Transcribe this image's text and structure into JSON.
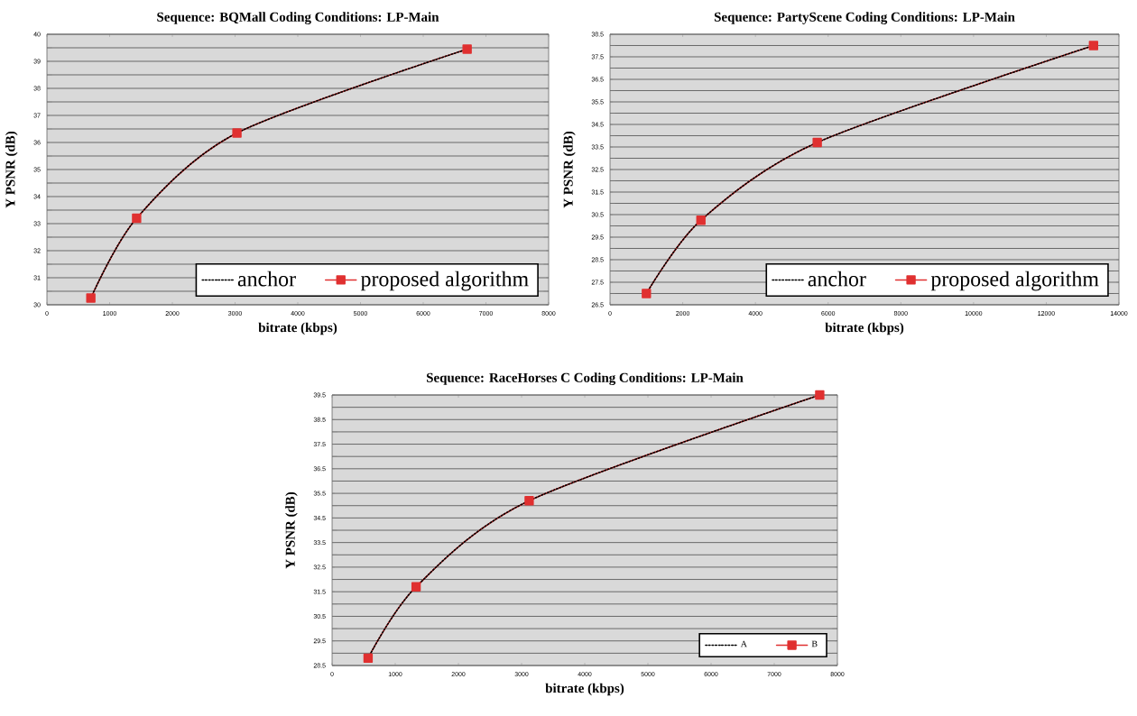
{
  "chart_data": [
    {
      "type": "line",
      "title": "Sequence:  BQMall      Coding  Conditions:  LP-Main",
      "xlabel": "bitrate  (kbps)",
      "ylabel": "Y  PSNR  (dB)",
      "x": [
        700,
        1430,
        3030,
        6700
      ],
      "series": [
        {
          "name": "anchor",
          "color": "#000000",
          "values": [
            30.25,
            33.2,
            36.35,
            39.45
          ],
          "line_style": "dotted",
          "marker": "none"
        },
        {
          "name": "proposed algorithm",
          "color": "#e03030",
          "values": [
            30.25,
            33.2,
            36.35,
            39.45
          ],
          "line_style": "solid",
          "marker": "square"
        }
      ],
      "xlim": [
        0,
        8000
      ],
      "xticks": [
        0,
        1000,
        2000,
        3000,
        4000,
        5000,
        6000,
        7000,
        8000
      ],
      "ylim": [
        30,
        40
      ],
      "yticks": [
        30,
        31,
        32,
        33,
        34,
        35,
        36,
        37,
        38,
        39,
        40
      ],
      "grid": "y",
      "legend": "bottom right"
    },
    {
      "type": "line",
      "title": "Sequence:  PartyScene      Coding  Conditions:  LP-Main",
      "xlabel": "bitrate  (kbps)",
      "ylabel": "Y  PSNR  (dB)",
      "x": [
        1000,
        2500,
        5700,
        13300
      ],
      "series": [
        {
          "name": "anchor",
          "color": "#000000",
          "values": [
            27.0,
            30.25,
            33.7,
            38.0
          ],
          "line_style": "dotted",
          "marker": "none"
        },
        {
          "name": "proposed algorithm",
          "color": "#e03030",
          "values": [
            27.0,
            30.25,
            33.7,
            38.0
          ],
          "line_style": "solid",
          "marker": "square"
        }
      ],
      "xlim": [
        0,
        14000
      ],
      "xticks": [
        0,
        2000,
        4000,
        6000,
        8000,
        10000,
        12000,
        14000
      ],
      "ylim": [
        26.5,
        38.5
      ],
      "yticks": [
        26.5,
        27.5,
        28.5,
        29.5,
        30.5,
        31.5,
        32.5,
        33.5,
        34.5,
        35.5,
        36.5,
        37.5,
        38.5
      ],
      "grid": "y",
      "legend": "bottom right"
    },
    {
      "type": "line",
      "title": "Sequence:  RaceHorses C      Coding  Conditions:  LP-Main",
      "xlabel": "bitrate  (kbps)",
      "ylabel": "Y  PSNR  (dB)",
      "x": [
        570,
        1330,
        3120,
        7720
      ],
      "series": [
        {
          "name": "A",
          "color": "#000000",
          "values": [
            28.8,
            31.7,
            35.2,
            39.5
          ],
          "line_style": "dotted",
          "marker": "none"
        },
        {
          "name": "B",
          "color": "#e03030",
          "values": [
            28.8,
            31.7,
            35.2,
            39.5
          ],
          "line_style": "solid",
          "marker": "square"
        }
      ],
      "xlim": [
        0,
        8000
      ],
      "xticks": [
        0,
        1000,
        2000,
        3000,
        4000,
        5000,
        6000,
        7000,
        8000
      ],
      "ylim": [
        28.5,
        39.5
      ],
      "yticks": [
        28.5,
        29.5,
        30.5,
        31.5,
        32.5,
        33.5,
        34.5,
        35.5,
        36.5,
        37.5,
        38.5,
        39.5
      ],
      "grid": "y",
      "legend": "bottom right"
    }
  ]
}
